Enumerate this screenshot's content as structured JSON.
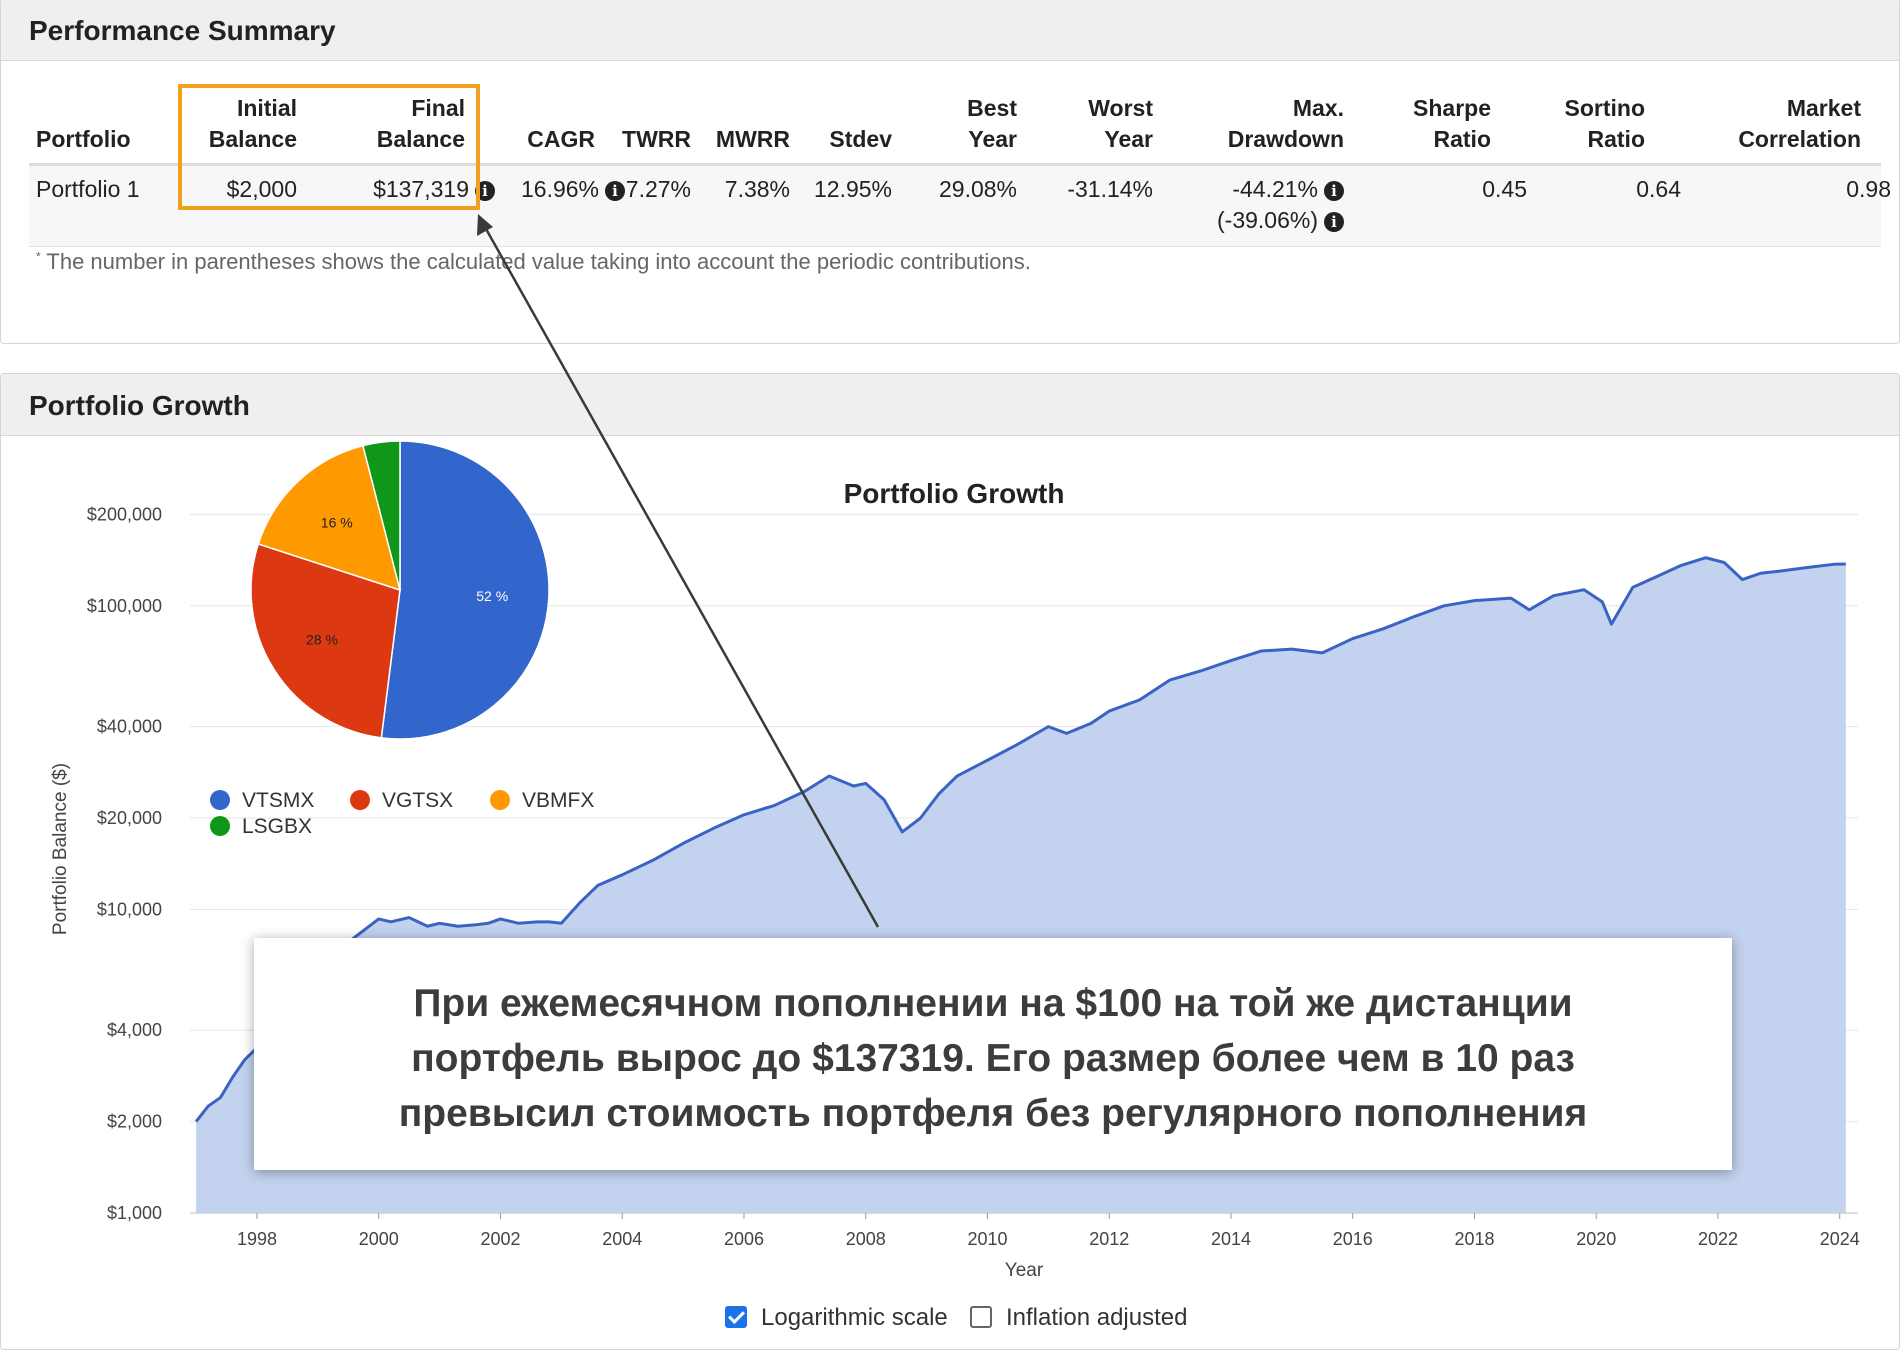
{
  "performance_summary": {
    "title": "Performance Summary",
    "headers": {
      "portfolio": "Portfolio",
      "initial_1": "Initial",
      "initial_2": "Balance",
      "final_1": "Final",
      "final_2": "Balance",
      "cagr": "CAGR",
      "twrr": "TWRR",
      "mwrr": "MWRR",
      "stdev": "Stdev",
      "best_1": "Best",
      "best_2": "Year",
      "worst_1": "Worst",
      "worst_2": "Year",
      "maxdd_1": "Max.",
      "maxdd_2": "Drawdown",
      "sharpe_1": "Sharpe",
      "sharpe_2": "Ratio",
      "sortino_1": "Sortino",
      "sortino_2": "Ratio",
      "mcorr_1": "Market",
      "mcorr_2": "Correlation"
    },
    "row": {
      "portfolio": "Portfolio 1",
      "initial_balance": "$2,000",
      "final_balance": "$137,319",
      "cagr": "16.96%",
      "twrr": "7.27%",
      "mwrr": "7.38%",
      "stdev": "12.95%",
      "best_year": "29.08%",
      "worst_year": "-31.14%",
      "max_drawdown": "-44.21%",
      "max_drawdown_alt": "(-39.06%)",
      "sharpe": "0.45",
      "sortino": "0.64",
      "market_correlation": "0.98"
    },
    "footnote_mark": "*",
    "footnote": "The number in parentheses shows the calculated value taking into account the periodic contributions.",
    "info_icon": "i"
  },
  "portfolio_growth": {
    "panel_title": "Portfolio Growth",
    "logarithmic_scale_label": "Logarithmic scale",
    "logarithmic_scale_checked": true,
    "inflation_adjusted_label": "Inflation adjusted",
    "inflation_adjusted_checked": false
  },
  "callout_text": "При ежемесячном пополнении на $100 на той же дистанции\nпортфель вырос до $137319. Его размер более чем в 10 раз\nпревысил стоимость портфеля без регулярного пополнения",
  "colors": {
    "highlight": "#f0a020",
    "line": "#3a63c4",
    "area": "#c3d2ef",
    "VTSMX": "#3366cc",
    "VGTSX": "#dc3912",
    "VBMFX": "#ff9900",
    "LSGBX": "#109618"
  },
  "chart_data": [
    {
      "type": "area",
      "title": "Portfolio Growth",
      "xlabel": "Year",
      "ylabel": "Portfolio Balance ($)",
      "y_scale": "log",
      "ylim": [
        1000,
        250000
      ],
      "xlim": [
        1996.9,
        2024.3
      ],
      "x_ticks": [
        "1998",
        "2000",
        "2002",
        "2004",
        "2006",
        "2008",
        "2010",
        "2012",
        "2014",
        "2016",
        "2018",
        "2020",
        "2022",
        "2024"
      ],
      "y_ticks": [
        {
          "v": 1000,
          "label": "$1,000"
        },
        {
          "v": 2000,
          "label": "$2,000"
        },
        {
          "v": 4000,
          "label": "$4,000"
        },
        {
          "v": 10000,
          "label": "$10,000"
        },
        {
          "v": 20000,
          "label": "$20,000"
        },
        {
          "v": 40000,
          "label": "$40,000"
        },
        {
          "v": 100000,
          "label": "$100,000"
        },
        {
          "v": 200000,
          "label": "$200,000"
        }
      ],
      "grid": true,
      "series": [
        {
          "x": [
            1997.0,
            1997.2,
            1997.4,
            1997.6,
            1997.8,
            1998.0,
            1998.3,
            1998.6,
            1999.0,
            1999.5,
            2000.0,
            2000.2,
            2000.5,
            2000.8,
            2001.0,
            2001.3,
            2001.6,
            2001.8,
            2002.0,
            2002.3,
            2002.6,
            2002.8,
            2003.0,
            2003.3,
            2003.6,
            2004.0,
            2004.5,
            2005.0,
            2005.5,
            2006.0,
            2006.5,
            2007.0,
            2007.4,
            2007.8,
            2008.0,
            2008.3,
            2008.6,
            2008.9,
            2009.2,
            2009.5,
            2010.0,
            2010.5,
            2011.0,
            2011.3,
            2011.7,
            2012.0,
            2012.5,
            2013.0,
            2013.5,
            2014.0,
            2014.5,
            2015.0,
            2015.5,
            2016.0,
            2016.5,
            2017.0,
            2017.5,
            2018.0,
            2018.6,
            2018.9,
            2019.3,
            2019.8,
            2020.1,
            2020.25,
            2020.6,
            2021.0,
            2021.4,
            2021.8,
            2022.1,
            2022.4,
            2022.7,
            2023.0,
            2023.5,
            2023.9,
            2024.1
          ],
          "y": [
            2000,
            2250,
            2400,
            2800,
            3200,
            3500,
            4300,
            4800,
            6500,
            7800,
            9300,
            9100,
            9400,
            8800,
            9000,
            8800,
            8900,
            9000,
            9300,
            9000,
            9100,
            9100,
            9000,
            10500,
            12000,
            13000,
            14500,
            16500,
            18500,
            20500,
            22000,
            24500,
            27500,
            25500,
            26000,
            23000,
            18000,
            20000,
            24000,
            27500,
            31000,
            35000,
            40000,
            38000,
            41000,
            45000,
            49000,
            57000,
            61000,
            66000,
            71000,
            72000,
            70000,
            78000,
            84000,
            92000,
            100000,
            104000,
            106000,
            97000,
            108000,
            113000,
            103000,
            87000,
            115000,
            125000,
            136000,
            144000,
            139000,
            122000,
            128000,
            130000,
            134000,
            137000,
            137319
          ]
        }
      ]
    },
    {
      "type": "pie",
      "labels": [
        "VTSMX",
        "VGTSX",
        "VBMFX",
        "LSGBX"
      ],
      "values": [
        52,
        28,
        16,
        4
      ],
      "data_labels": [
        "52 %",
        "28 %",
        "16 %",
        ""
      ],
      "legend_position": "bottom"
    }
  ]
}
